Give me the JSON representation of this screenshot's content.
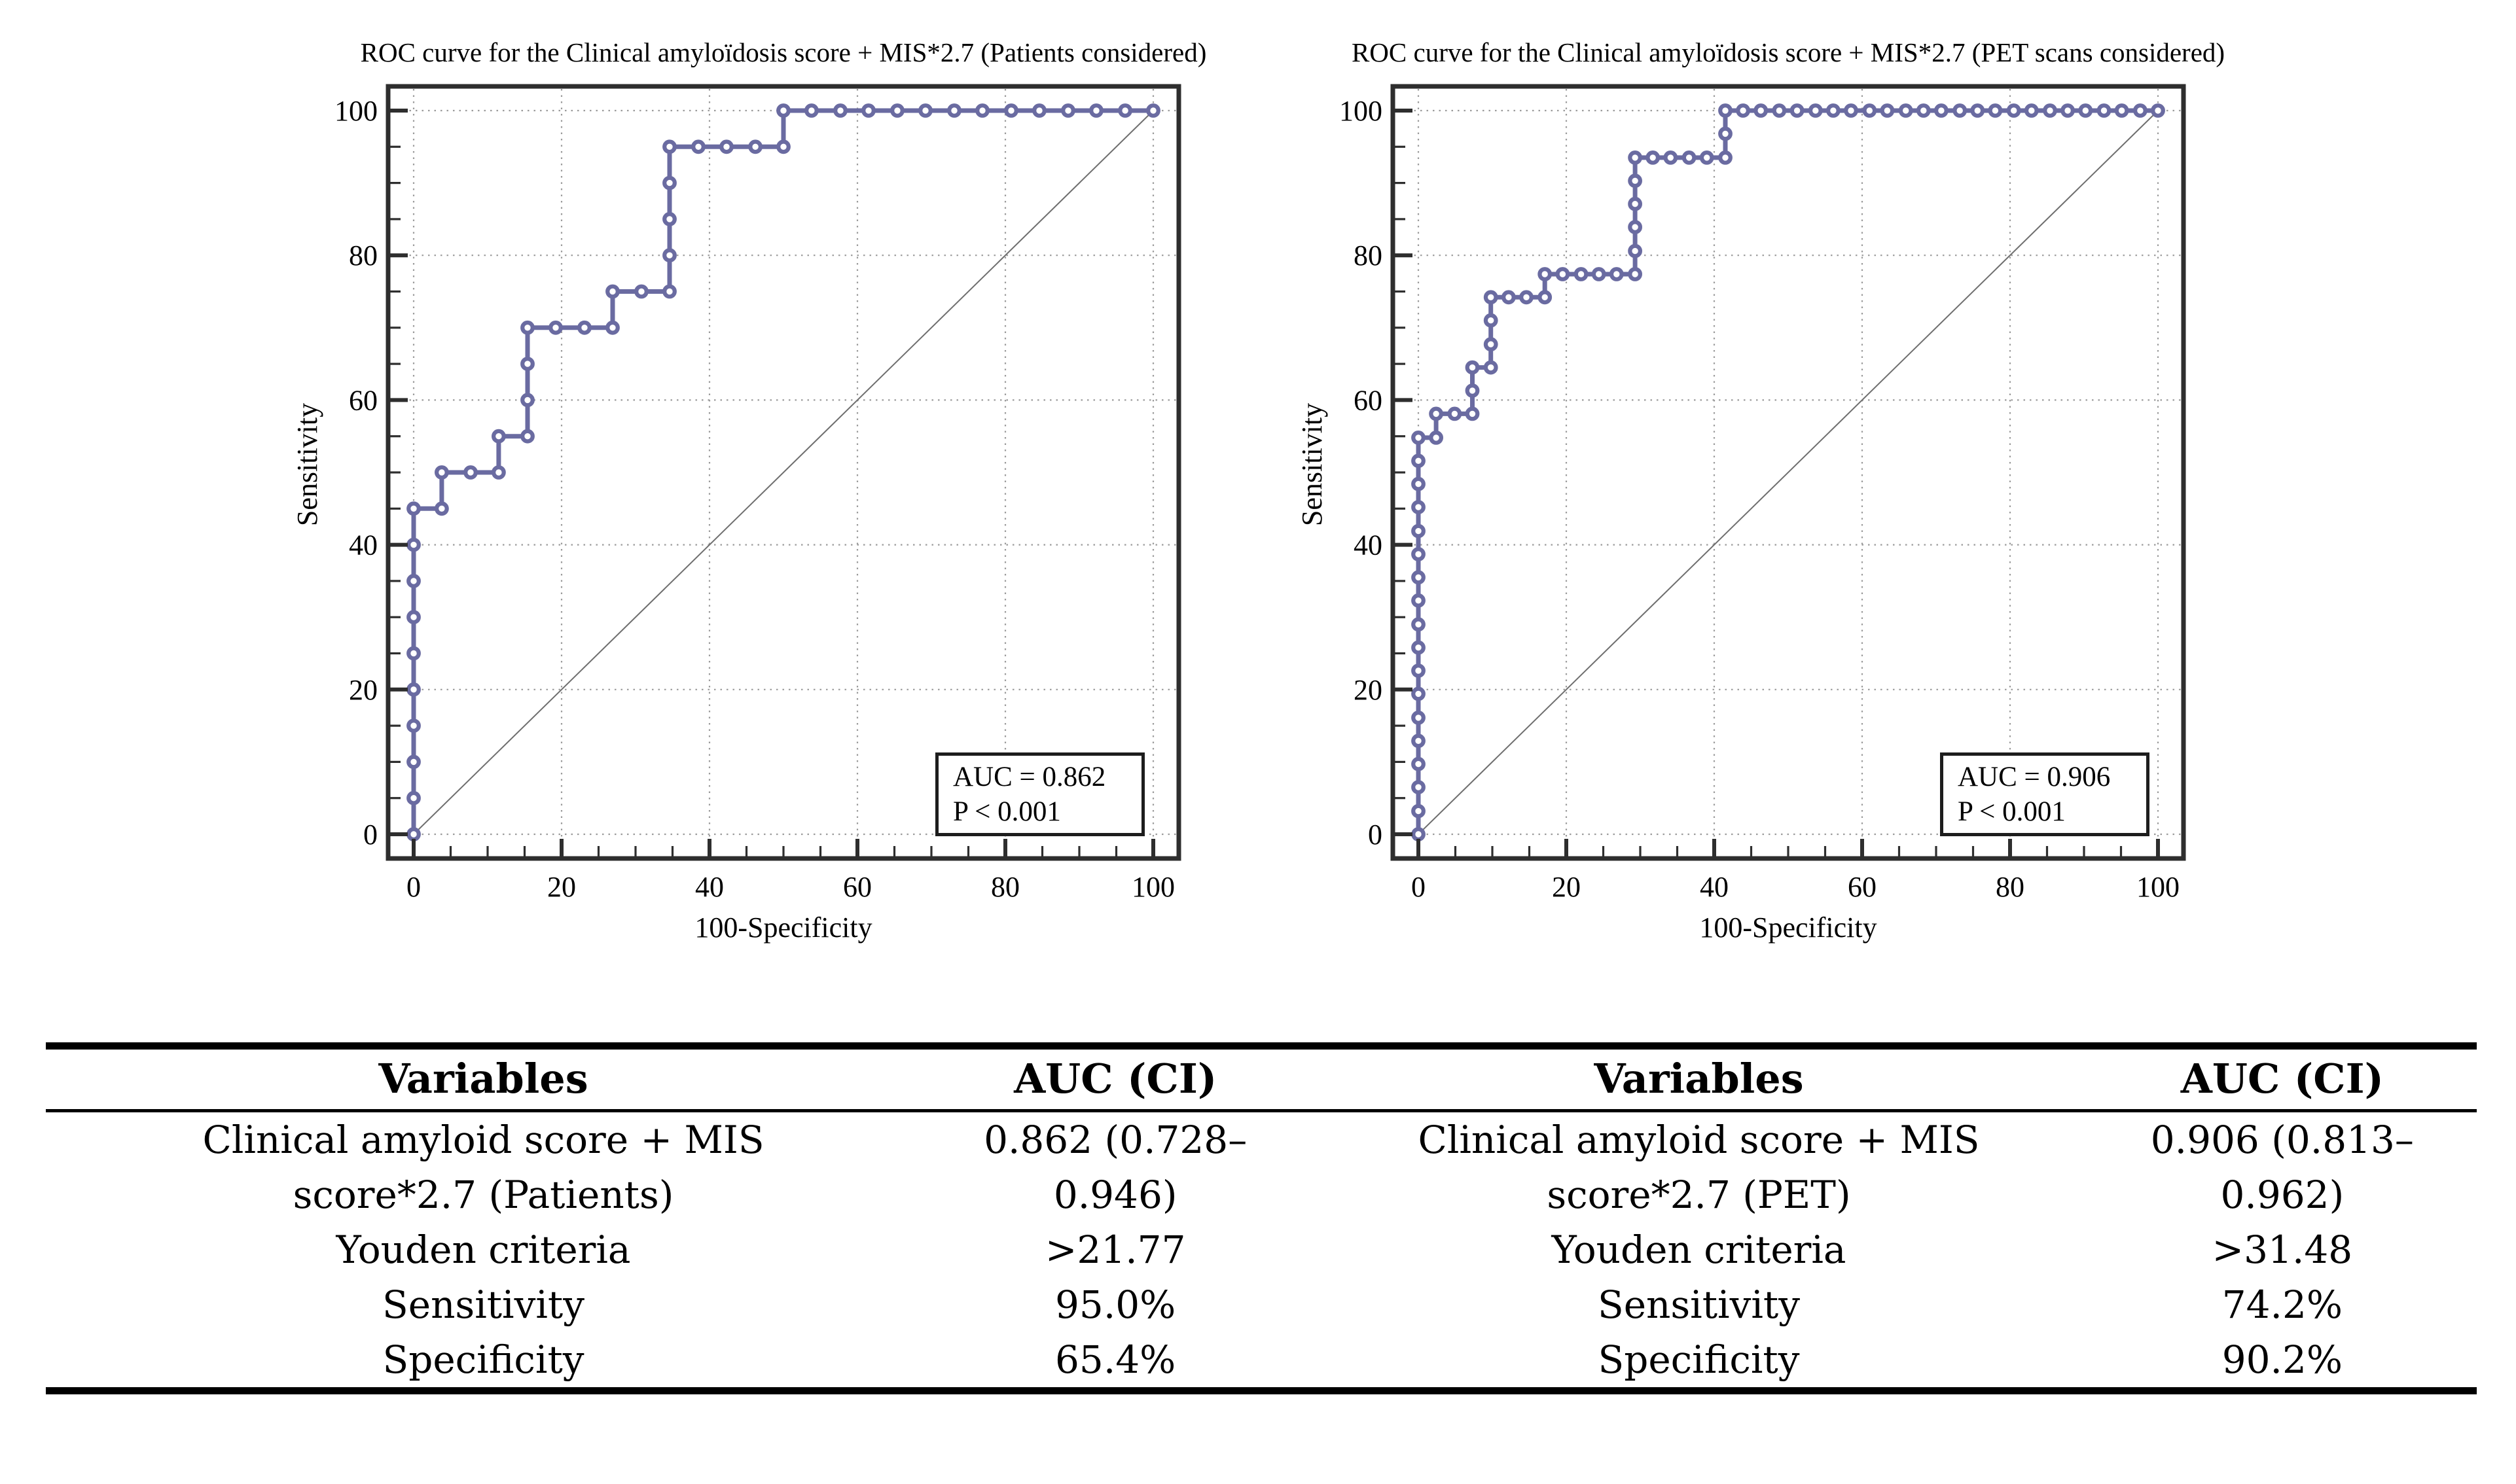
{
  "colors": {
    "curve": "#6a6ba1",
    "frame": "#2e2e2e",
    "grid": "#9b9b9b",
    "diagonal": "#6e6e6e",
    "background": "#ffffff"
  },
  "chart_data": [
    {
      "type": "line",
      "subtype": "roc-step-curve",
      "title": "ROC curve for the Clinical amyloïdosis score + MIS*2.7 (Patients considered)",
      "xlabel": "100-Specificity",
      "ylabel": "Sensitivity",
      "auc_label": "AUC = 0.862",
      "p_label": "P < 0.001",
      "color": "#6a6ba1",
      "axis": {
        "xlim": [
          0,
          100
        ],
        "ylim": [
          0,
          100
        ],
        "xticks": [
          0,
          20,
          40,
          60,
          80,
          100
        ],
        "yticks": [
          0,
          20,
          40,
          60,
          80,
          100
        ],
        "minor_tick_step": 5,
        "grid": "dotted-at-major"
      },
      "points": [
        [
          0,
          0
        ],
        [
          0,
          5
        ],
        [
          0,
          10
        ],
        [
          0,
          15
        ],
        [
          0,
          20
        ],
        [
          0,
          25
        ],
        [
          0,
          30
        ],
        [
          0,
          35
        ],
        [
          0,
          40
        ],
        [
          0,
          45
        ],
        [
          3.8,
          45
        ],
        [
          3.8,
          50
        ],
        [
          7.7,
          50
        ],
        [
          11.5,
          50
        ],
        [
          11.5,
          55
        ],
        [
          15.4,
          55
        ],
        [
          15.4,
          60
        ],
        [
          15.4,
          65
        ],
        [
          15.4,
          70
        ],
        [
          19.2,
          70
        ],
        [
          23.1,
          70
        ],
        [
          26.9,
          70
        ],
        [
          26.9,
          75
        ],
        [
          30.8,
          75
        ],
        [
          34.6,
          75
        ],
        [
          34.6,
          80
        ],
        [
          34.6,
          85
        ],
        [
          34.6,
          90
        ],
        [
          34.6,
          95
        ],
        [
          38.5,
          95
        ],
        [
          42.3,
          95
        ],
        [
          46.2,
          95
        ],
        [
          50,
          95
        ],
        [
          50,
          100
        ],
        [
          53.8,
          100
        ],
        [
          57.7,
          100
        ],
        [
          61.5,
          100
        ],
        [
          65.4,
          100
        ],
        [
          69.2,
          100
        ],
        [
          73.1,
          100
        ],
        [
          76.9,
          100
        ],
        [
          80.8,
          100
        ],
        [
          84.6,
          100
        ],
        [
          88.5,
          100
        ],
        [
          92.3,
          100
        ],
        [
          96.2,
          100
        ],
        [
          100,
          100
        ]
      ]
    },
    {
      "type": "line",
      "subtype": "roc-step-curve",
      "title": "ROC curve for the Clinical amyloïdosis score + MIS*2.7 (PET scans considered)",
      "xlabel": "100-Specificity",
      "ylabel": "Sensitivity",
      "auc_label": "AUC = 0.906",
      "p_label": "P < 0.001",
      "color": "#6a6ba1",
      "axis": {
        "xlim": [
          0,
          100
        ],
        "ylim": [
          0,
          100
        ],
        "xticks": [
          0,
          20,
          40,
          60,
          80,
          100
        ],
        "yticks": [
          0,
          20,
          40,
          60,
          80,
          100
        ],
        "minor_tick_step": 5,
        "grid": "dotted-at-major"
      },
      "points": [
        [
          0,
          0
        ],
        [
          0,
          3.2
        ],
        [
          0,
          6.5
        ],
        [
          0,
          9.7
        ],
        [
          0,
          12.9
        ],
        [
          0,
          16.1
        ],
        [
          0,
          19.4
        ],
        [
          0,
          22.6
        ],
        [
          0,
          25.8
        ],
        [
          0,
          29
        ],
        [
          0,
          32.3
        ],
        [
          0,
          35.5
        ],
        [
          0,
          38.7
        ],
        [
          0,
          41.9
        ],
        [
          0,
          45.2
        ],
        [
          0,
          48.4
        ],
        [
          0,
          51.6
        ],
        [
          0,
          54.8
        ],
        [
          2.4,
          54.8
        ],
        [
          2.4,
          58.1
        ],
        [
          4.9,
          58.1
        ],
        [
          7.3,
          58.1
        ],
        [
          7.3,
          61.3
        ],
        [
          7.3,
          64.5
        ],
        [
          9.8,
          64.5
        ],
        [
          9.8,
          67.7
        ],
        [
          9.8,
          71
        ],
        [
          9.8,
          74.2
        ],
        [
          12.2,
          74.2
        ],
        [
          14.6,
          74.2
        ],
        [
          17.1,
          74.2
        ],
        [
          17.1,
          77.4
        ],
        [
          19.5,
          77.4
        ],
        [
          22,
          77.4
        ],
        [
          24.4,
          77.4
        ],
        [
          26.8,
          77.4
        ],
        [
          29.3,
          77.4
        ],
        [
          29.3,
          80.6
        ],
        [
          29.3,
          83.9
        ],
        [
          29.3,
          87.1
        ],
        [
          29.3,
          90.3
        ],
        [
          29.3,
          93.5
        ],
        [
          31.7,
          93.5
        ],
        [
          34.1,
          93.5
        ],
        [
          36.6,
          93.5
        ],
        [
          39,
          93.5
        ],
        [
          41.5,
          93.5
        ],
        [
          41.5,
          96.8
        ],
        [
          41.5,
          100
        ],
        [
          43.9,
          100
        ],
        [
          46.3,
          100
        ],
        [
          48.8,
          100
        ],
        [
          51.2,
          100
        ],
        [
          53.7,
          100
        ],
        [
          56.1,
          100
        ],
        [
          58.5,
          100
        ],
        [
          61,
          100
        ],
        [
          63.4,
          100
        ],
        [
          65.9,
          100
        ],
        [
          68.3,
          100
        ],
        [
          70.7,
          100
        ],
        [
          73.2,
          100
        ],
        [
          75.6,
          100
        ],
        [
          78,
          100
        ],
        [
          80.5,
          100
        ],
        [
          82.9,
          100
        ],
        [
          85.4,
          100
        ],
        [
          87.8,
          100
        ],
        [
          90.2,
          100
        ],
        [
          92.7,
          100
        ],
        [
          95.1,
          100
        ],
        [
          97.6,
          100
        ],
        [
          100,
          100
        ]
      ]
    }
  ],
  "table": {
    "headers": [
      "Variables",
      "AUC (CI)",
      "Variables",
      "AUC (CI)"
    ],
    "rows": [
      {
        "cells": [
          [
            "Clinical amyloid score + MIS",
            "score*2.7 (Patients)"
          ],
          [
            "0.862 (0.728–",
            "0.946)"
          ],
          [
            "Clinical amyloid score + MIS",
            "score*2.7 (PET)"
          ],
          [
            "0.906 (0.813–",
            "0.962)"
          ]
        ]
      },
      {
        "cells": [
          [
            "Youden criteria"
          ],
          [
            ">21.77"
          ],
          [
            "Youden criteria"
          ],
          [
            ">31.48"
          ]
        ]
      },
      {
        "cells": [
          [
            "Sensitivity"
          ],
          [
            "95.0%"
          ],
          [
            "Sensitivity"
          ],
          [
            "74.2%"
          ]
        ]
      },
      {
        "cells": [
          [
            "Specificity"
          ],
          [
            "65.4%"
          ],
          [
            "Specificity"
          ],
          [
            "90.2%"
          ]
        ]
      }
    ]
  }
}
